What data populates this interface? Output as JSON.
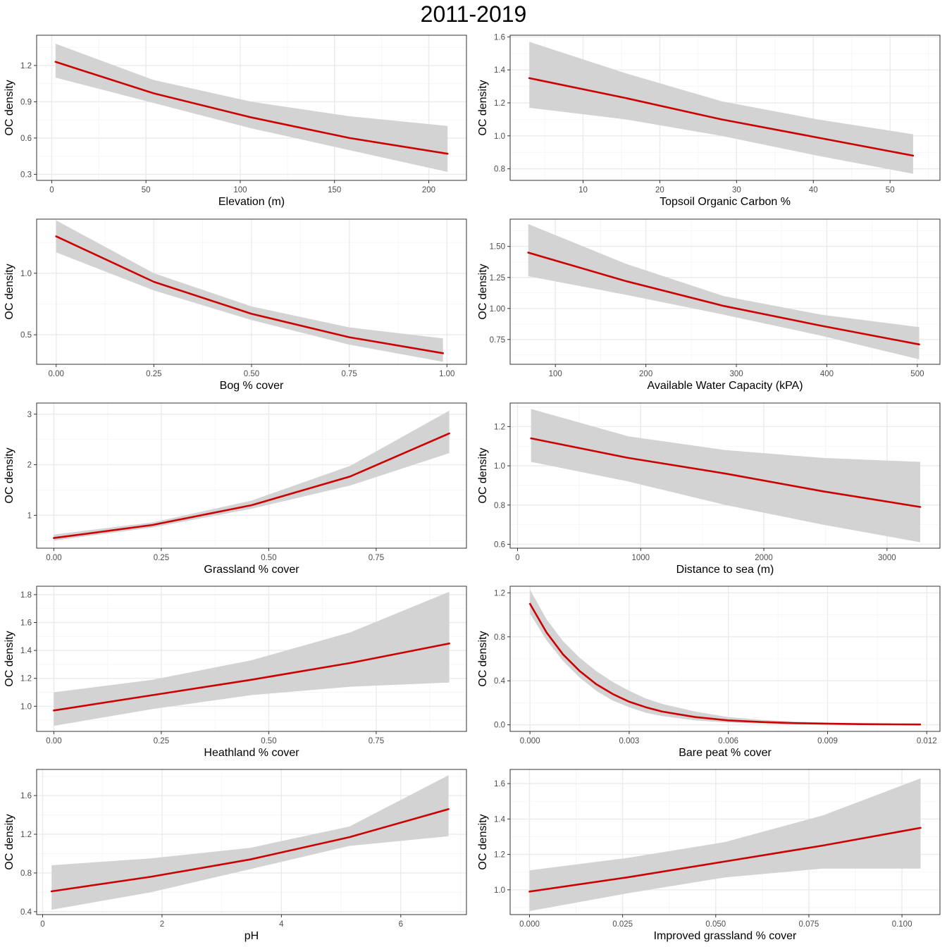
{
  "title": "2011-2019",
  "colors": {
    "line": "#cc0000",
    "ribbon": "#d3d3d3",
    "grid_major": "#ebebeb",
    "grid_minor": "#f5f5f5",
    "panel_border": "#333333",
    "text": "#4d4d4d"
  },
  "chart_data": [
    {
      "type": "line",
      "xlabel": "Elevation (m)",
      "ylabel": "OC density",
      "xlim": [
        -8,
        220
      ],
      "ylim": [
        0.25,
        1.45
      ],
      "xticks": [
        0,
        50,
        100,
        150,
        200
      ],
      "xtick_labels": [
        "0",
        "50",
        "100",
        "150",
        "200"
      ],
      "yticks": [
        0.3,
        0.6,
        0.9,
        1.2
      ],
      "ytick_labels": [
        "0.3",
        "0.6",
        "0.9",
        "1.2"
      ],
      "series": [
        {
          "name": "fit",
          "x": [
            2,
            54,
            106,
            158,
            210
          ],
          "y": [
            1.23,
            0.97,
            0.77,
            0.6,
            0.47
          ],
          "lower": [
            1.1,
            0.89,
            0.68,
            0.5,
            0.32
          ],
          "upper": [
            1.38,
            1.08,
            0.9,
            0.78,
            0.7
          ]
        }
      ]
    },
    {
      "type": "line",
      "xlabel": "Topsoil Organic Carbon %",
      "ylabel": "OC density",
      "xlim": [
        0.5,
        56.5
      ],
      "ylim": [
        0.73,
        1.61
      ],
      "xticks": [
        10,
        20,
        30,
        40,
        50
      ],
      "xtick_labels": [
        "10",
        "20",
        "30",
        "40",
        "50"
      ],
      "yticks": [
        0.8,
        1.0,
        1.2,
        1.4,
        1.6
      ],
      "ytick_labels": [
        "0.8",
        "1.0",
        "1.2",
        "1.4",
        "1.6"
      ],
      "series": [
        {
          "name": "fit",
          "x": [
            3,
            15.5,
            28,
            40.5,
            53
          ],
          "y": [
            1.35,
            1.23,
            1.1,
            0.99,
            0.88
          ],
          "lower": [
            1.17,
            1.1,
            1.0,
            0.88,
            0.77
          ],
          "upper": [
            1.57,
            1.38,
            1.21,
            1.1,
            1.01
          ]
        }
      ]
    },
    {
      "type": "line",
      "xlabel": "Bog % cover",
      "ylabel": "OC density",
      "xlim": [
        -0.05,
        1.05
      ],
      "ylim": [
        0.26,
        1.44
      ],
      "xticks": [
        0,
        0.25,
        0.5,
        0.75,
        1.0
      ],
      "xtick_labels": [
        "0.00",
        "0.25",
        "0.50",
        "0.75",
        "1.00"
      ],
      "yticks": [
        0.5,
        1.0
      ],
      "ytick_labels": [
        "0.5",
        "1.0"
      ],
      "series": [
        {
          "name": "fit",
          "x": [
            0,
            0.25,
            0.5,
            0.75,
            0.99
          ],
          "y": [
            1.3,
            0.93,
            0.67,
            0.48,
            0.35
          ],
          "lower": [
            1.17,
            0.86,
            0.62,
            0.42,
            0.28
          ],
          "upper": [
            1.43,
            1.0,
            0.73,
            0.56,
            0.47
          ]
        }
      ]
    },
    {
      "type": "line",
      "xlabel": "Available Water Capacity (kPA)",
      "ylabel": "OC density",
      "xlim": [
        50,
        525
      ],
      "ylim": [
        0.55,
        1.72
      ],
      "xticks": [
        100,
        200,
        300,
        400,
        500
      ],
      "xtick_labels": [
        "100",
        "200",
        "300",
        "400",
        "500"
      ],
      "yticks": [
        0.75,
        1.0,
        1.25,
        1.5
      ],
      "ytick_labels": [
        "0.75",
        "1.00",
        "1.25",
        "1.50"
      ],
      "series": [
        {
          "name": "fit",
          "x": [
            70,
            178,
            286,
            394,
            502
          ],
          "y": [
            1.45,
            1.22,
            1.02,
            0.86,
            0.71
          ],
          "lower": [
            1.26,
            1.11,
            0.95,
            0.78,
            0.59
          ],
          "upper": [
            1.68,
            1.36,
            1.1,
            0.95,
            0.85
          ]
        }
      ]
    },
    {
      "type": "line",
      "xlabel": "Grassland % cover",
      "ylabel": "OC density",
      "xlim": [
        -0.04,
        0.96
      ],
      "ylim": [
        0.35,
        3.22
      ],
      "xticks": [
        0,
        0.25,
        0.5,
        0.75
      ],
      "xtick_labels": [
        "0.00",
        "0.25",
        "0.50",
        "0.75"
      ],
      "yticks": [
        1,
        2,
        3
      ],
      "ytick_labels": [
        "1",
        "2",
        "3"
      ],
      "series": [
        {
          "name": "fit",
          "x": [
            0,
            0.23,
            0.46,
            0.69,
            0.92
          ],
          "y": [
            0.55,
            0.81,
            1.2,
            1.77,
            2.62
          ],
          "lower": [
            0.5,
            0.76,
            1.13,
            1.59,
            2.23
          ],
          "upper": [
            0.62,
            0.86,
            1.29,
            1.98,
            3.07
          ]
        }
      ]
    },
    {
      "type": "line",
      "xlabel": "Distance to sea (m)",
      "ylabel": "OC density",
      "xlim": [
        -60,
        3430
      ],
      "ylim": [
        0.58,
        1.32
      ],
      "xticks": [
        0,
        1000,
        2000,
        3000
      ],
      "xtick_labels": [
        "0",
        "1000",
        "2000",
        "3000"
      ],
      "yticks": [
        0.6,
        0.8,
        1.0,
        1.2
      ],
      "ytick_labels": [
        "0.6",
        "0.8",
        "1.0",
        "1.2"
      ],
      "series": [
        {
          "name": "fit",
          "x": [
            110,
            900,
            1690,
            2480,
            3270
          ],
          "y": [
            1.14,
            1.04,
            0.96,
            0.87,
            0.79
          ],
          "lower": [
            1.02,
            0.92,
            0.8,
            0.7,
            0.61
          ],
          "upper": [
            1.29,
            1.15,
            1.08,
            1.04,
            1.02
          ]
        }
      ]
    },
    {
      "type": "line",
      "xlabel": "Heathland % cover",
      "ylabel": "OC density",
      "xlim": [
        -0.04,
        0.96
      ],
      "ylim": [
        0.82,
        1.86
      ],
      "xticks": [
        0,
        0.25,
        0.5,
        0.75
      ],
      "xtick_labels": [
        "0.00",
        "0.25",
        "0.50",
        "0.75"
      ],
      "yticks": [
        1.0,
        1.2,
        1.4,
        1.6,
        1.8
      ],
      "ytick_labels": [
        "1.0",
        "1.2",
        "1.4",
        "1.6",
        "1.8"
      ],
      "series": [
        {
          "name": "fit",
          "x": [
            0,
            0.23,
            0.46,
            0.69,
            0.92
          ],
          "y": [
            0.97,
            1.08,
            1.19,
            1.31,
            1.45
          ],
          "lower": [
            0.86,
            0.98,
            1.08,
            1.14,
            1.17
          ],
          "upper": [
            1.1,
            1.19,
            1.33,
            1.53,
            1.82
          ]
        }
      ]
    },
    {
      "type": "line",
      "xlabel": "Bare peat % cover",
      "ylabel": "OC density",
      "xlim": [
        -0.0006,
        0.0124
      ],
      "ylim": [
        -0.06,
        1.26
      ],
      "xticks": [
        0,
        0.003,
        0.006,
        0.009,
        0.012
      ],
      "xtick_labels": [
        "0.000",
        "0.003",
        "0.006",
        "0.009",
        "0.012"
      ],
      "yticks": [
        0.0,
        0.4,
        0.8,
        1.2
      ],
      "ytick_labels": [
        "0.0",
        "0.4",
        "0.8",
        "1.2"
      ],
      "series": [
        {
          "name": "fit",
          "x": [
            0,
            0.0005,
            0.001,
            0.0015,
            0.002,
            0.0025,
            0.003,
            0.0035,
            0.004,
            0.005,
            0.006,
            0.007,
            0.008,
            0.009,
            0.01,
            0.0118
          ],
          "y": [
            1.1,
            0.84,
            0.64,
            0.49,
            0.37,
            0.28,
            0.21,
            0.16,
            0.12,
            0.07,
            0.04,
            0.025,
            0.015,
            0.01,
            0.006,
            0.003
          ],
          "lower": [
            1.01,
            0.77,
            0.58,
            0.43,
            0.31,
            0.22,
            0.16,
            0.11,
            0.08,
            0.04,
            0.02,
            0.01,
            0.005,
            0.003,
            0.002,
            0.001
          ],
          "upper": [
            1.23,
            0.96,
            0.76,
            0.61,
            0.49,
            0.39,
            0.31,
            0.24,
            0.19,
            0.12,
            0.07,
            0.045,
            0.03,
            0.02,
            0.014,
            0.008
          ]
        }
      ]
    },
    {
      "type": "line",
      "xlabel": "pH",
      "ylabel": "OC density",
      "xlim": [
        -0.1,
        7.1
      ],
      "ylim": [
        0.37,
        1.87
      ],
      "xticks": [
        0,
        2,
        4,
        6
      ],
      "xtick_labels": [
        "0",
        "2",
        "4",
        "6"
      ],
      "yticks": [
        0.4,
        0.8,
        1.2,
        1.6
      ],
      "ytick_labels": [
        "0.4",
        "0.8",
        "1.2",
        "1.6"
      ],
      "series": [
        {
          "name": "fit",
          "x": [
            0.15,
            1.81,
            3.48,
            5.14,
            6.8
          ],
          "y": [
            0.61,
            0.76,
            0.94,
            1.17,
            1.46
          ],
          "lower": [
            0.42,
            0.6,
            0.84,
            1.08,
            1.18
          ],
          "upper": [
            0.88,
            0.95,
            1.06,
            1.28,
            1.81
          ]
        }
      ]
    },
    {
      "type": "line",
      "xlabel": "Improved grassland % cover",
      "ylabel": "OC density",
      "xlim": [
        -0.0052,
        0.1102
      ],
      "ylim": [
        0.86,
        1.68
      ],
      "xticks": [
        0,
        0.025,
        0.05,
        0.075,
        0.1
      ],
      "xtick_labels": [
        "0.000",
        "0.025",
        "0.050",
        "0.075",
        "0.100"
      ],
      "yticks": [
        1.0,
        1.2,
        1.4,
        1.6
      ],
      "ytick_labels": [
        "1.0",
        "1.2",
        "1.4",
        "1.6"
      ],
      "series": [
        {
          "name": "fit",
          "x": [
            0,
            0.02625,
            0.0525,
            0.07875,
            0.105
          ],
          "y": [
            0.99,
            1.07,
            1.16,
            1.25,
            1.35
          ],
          "lower": [
            0.88,
            0.98,
            1.07,
            1.12,
            1.12
          ],
          "upper": [
            1.11,
            1.18,
            1.27,
            1.42,
            1.63
          ]
        }
      ]
    }
  ]
}
